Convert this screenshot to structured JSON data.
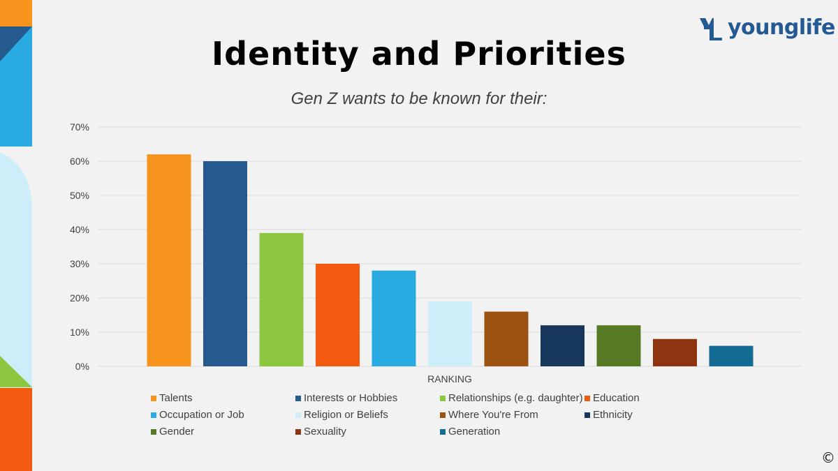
{
  "slide": {
    "title": "Identity and Priorities",
    "subtitle": "Gen Z wants to be known for their:",
    "logo_text": "younglife",
    "copyright_symbol": "©"
  },
  "colors": {
    "background": "#f2f2f2",
    "logo": "#245a93"
  },
  "chart_data": {
    "type": "bar",
    "title": "",
    "xlabel": "RANKING",
    "ylabel": "",
    "ylim": [
      0,
      0.7
    ],
    "yticks": [
      "0%",
      "10%",
      "20%",
      "30%",
      "40%",
      "50%",
      "60%",
      "70%"
    ],
    "grid": true,
    "legend_position": "bottom",
    "categories": [
      "RANKING"
    ],
    "series": [
      {
        "name": "Talents",
        "values": [
          0.62
        ],
        "color": "#f7941d"
      },
      {
        "name": "Interests or Hobbies",
        "values": [
          0.6
        ],
        "color": "#245a8e"
      },
      {
        "name": "Relationships (e.g. daughter)",
        "values": [
          0.39
        ],
        "color": "#8dc63f"
      },
      {
        "name": "Education",
        "values": [
          0.3
        ],
        "color": "#f15a0f"
      },
      {
        "name": "Occupation or Job",
        "values": [
          0.28
        ],
        "color": "#29abe2"
      },
      {
        "name": "Religion or Beliefs",
        "values": [
          0.19
        ],
        "color": "#cdeef9"
      },
      {
        "name": "Where You're From",
        "values": [
          0.16
        ],
        "color": "#9c5210"
      },
      {
        "name": "Ethnicity",
        "values": [
          0.12
        ],
        "color": "#16365c"
      },
      {
        "name": "Gender",
        "values": [
          0.12
        ],
        "color": "#567a24"
      },
      {
        "name": "Sexuality",
        "values": [
          0.08
        ],
        "color": "#8e3410"
      },
      {
        "name": "Generation",
        "values": [
          0.06
        ],
        "color": "#146b94"
      }
    ]
  }
}
